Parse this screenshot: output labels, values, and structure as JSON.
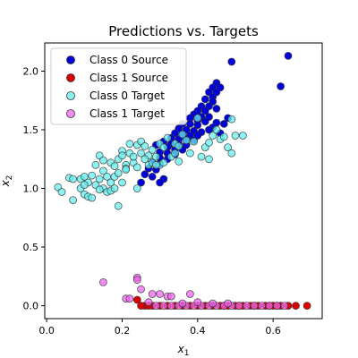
{
  "chart_data": {
    "type": "scatter",
    "title": "Predictions vs. Targets",
    "xlabel": "x",
    "xlabel_sub": "1",
    "ylabel": "x",
    "ylabel_sub": "2",
    "xlim": [
      -0.005,
      0.73
    ],
    "ylim": [
      -0.11,
      2.24
    ],
    "x_ticks": [
      0.0,
      0.2,
      0.4,
      0.6
    ],
    "x_tick_labels": [
      "0.0",
      "0.2",
      "0.4",
      "0.6"
    ],
    "y_ticks": [
      0.0,
      0.5,
      1.0,
      1.5,
      2.0
    ],
    "y_tick_labels": [
      "0.0",
      "0.5",
      "1.0",
      "1.5",
      "2.0"
    ],
    "grid": false,
    "legend_position": "top-left",
    "series": [
      {
        "name": "Class 0 Source",
        "color": "#0000dd",
        "points": [
          [
            0.64,
            2.13
          ],
          [
            0.49,
            2.08
          ],
          [
            0.62,
            1.87
          ],
          [
            0.45,
            1.9
          ],
          [
            0.44,
            1.86
          ],
          [
            0.46,
            1.86
          ],
          [
            0.43,
            1.82
          ],
          [
            0.45,
            1.82
          ],
          [
            0.44,
            1.78
          ],
          [
            0.42,
            1.76
          ],
          [
            0.44,
            1.74
          ],
          [
            0.41,
            1.7
          ],
          [
            0.43,
            1.7
          ],
          [
            0.45,
            1.68
          ],
          [
            0.4,
            1.66
          ],
          [
            0.42,
            1.66
          ],
          [
            0.39,
            1.63
          ],
          [
            0.41,
            1.61
          ],
          [
            0.43,
            1.61
          ],
          [
            0.38,
            1.6
          ],
          [
            0.4,
            1.58
          ],
          [
            0.42,
            1.57
          ],
          [
            0.45,
            1.56
          ],
          [
            0.36,
            1.55
          ],
          [
            0.38,
            1.55
          ],
          [
            0.4,
            1.54
          ],
          [
            0.44,
            1.52
          ],
          [
            0.35,
            1.51
          ],
          [
            0.37,
            1.5
          ],
          [
            0.39,
            1.49
          ],
          [
            0.41,
            1.48
          ],
          [
            0.43,
            1.5
          ],
          [
            0.34,
            1.47
          ],
          [
            0.36,
            1.46
          ],
          [
            0.38,
            1.45
          ],
          [
            0.4,
            1.45
          ],
          [
            0.33,
            1.43
          ],
          [
            0.35,
            1.42
          ],
          [
            0.37,
            1.42
          ],
          [
            0.39,
            1.41
          ],
          [
            0.31,
            1.4
          ],
          [
            0.33,
            1.38
          ],
          [
            0.35,
            1.38
          ],
          [
            0.37,
            1.37
          ],
          [
            0.32,
            1.35
          ],
          [
            0.34,
            1.33
          ],
          [
            0.36,
            1.33
          ],
          [
            0.3,
            1.31
          ],
          [
            0.32,
            1.3
          ],
          [
            0.34,
            1.29
          ],
          [
            0.3,
            1.26
          ],
          [
            0.32,
            1.25
          ],
          [
            0.28,
            1.22
          ],
          [
            0.3,
            1.21
          ],
          [
            0.27,
            1.17
          ],
          [
            0.29,
            1.16
          ],
          [
            0.26,
            1.12
          ],
          [
            0.28,
            1.1
          ],
          [
            0.31,
            1.08
          ],
          [
            0.25,
            1.05
          ],
          [
            0.3,
            1.05
          ],
          [
            0.47,
            1.55
          ],
          [
            0.46,
            1.47
          ],
          [
            0.48,
            1.6
          ],
          [
            0.29,
            1.37
          ]
        ]
      },
      {
        "name": "Class 1 Source",
        "color": "#dd0000",
        "points": [
          [
            0.69,
            0.0
          ],
          [
            0.66,
            0.0
          ],
          [
            0.64,
            0.0
          ],
          [
            0.62,
            0.0
          ],
          [
            0.6,
            0.0
          ],
          [
            0.58,
            0.0
          ],
          [
            0.56,
            0.0
          ],
          [
            0.54,
            0.0
          ],
          [
            0.52,
            0.0
          ],
          [
            0.5,
            0.0
          ],
          [
            0.48,
            0.0
          ],
          [
            0.46,
            0.0
          ],
          [
            0.44,
            0.0
          ],
          [
            0.42,
            0.0
          ],
          [
            0.4,
            0.0
          ],
          [
            0.38,
            0.0
          ],
          [
            0.36,
            0.0
          ],
          [
            0.34,
            0.0
          ],
          [
            0.32,
            0.0
          ],
          [
            0.3,
            0.0
          ],
          [
            0.28,
            0.0
          ],
          [
            0.26,
            0.0
          ],
          [
            0.25,
            0.0
          ],
          [
            0.24,
            0.05
          ],
          [
            0.27,
            0.0
          ],
          [
            0.47,
            0.0
          ],
          [
            0.51,
            0.0
          ],
          [
            0.55,
            0.0
          ],
          [
            0.59,
            0.0
          ],
          [
            0.61,
            0.0
          ]
        ]
      },
      {
        "name": "Class 0 Target",
        "color": "#66eeee",
        "points": [
          [
            0.03,
            1.01
          ],
          [
            0.04,
            0.97
          ],
          [
            0.06,
            1.09
          ],
          [
            0.07,
            1.08
          ],
          [
            0.07,
            0.9
          ],
          [
            0.09,
            1.0
          ],
          [
            0.09,
            1.08
          ],
          [
            0.1,
            0.95
          ],
          [
            0.1,
            1.1
          ],
          [
            0.11,
            0.93
          ],
          [
            0.11,
            1.05
          ],
          [
            0.12,
            0.92
          ],
          [
            0.12,
            1.11
          ],
          [
            0.13,
            1.03
          ],
          [
            0.13,
            1.2
          ],
          [
            0.14,
            1.28
          ],
          [
            0.14,
            1.08
          ],
          [
            0.15,
            1.15
          ],
          [
            0.15,
            1.24
          ],
          [
            0.15,
            1.0
          ],
          [
            0.16,
            1.1
          ],
          [
            0.16,
            0.97
          ],
          [
            0.17,
            1.22
          ],
          [
            0.17,
            1.05
          ],
          [
            0.17,
            0.98
          ],
          [
            0.18,
            1.19
          ],
          [
            0.18,
            1.1
          ],
          [
            0.18,
            1.0
          ],
          [
            0.19,
            1.25
          ],
          [
            0.19,
            1.13
          ],
          [
            0.19,
            0.85
          ],
          [
            0.2,
            1.32
          ],
          [
            0.2,
            1.05
          ],
          [
            0.2,
            1.28
          ],
          [
            0.21,
            1.2
          ],
          [
            0.21,
            1.17
          ],
          [
            0.22,
            1.38
          ],
          [
            0.22,
            1.3
          ],
          [
            0.23,
            1.22
          ],
          [
            0.23,
            1.27
          ],
          [
            0.24,
            1.37
          ],
          [
            0.24,
            1.18
          ],
          [
            0.25,
            1.4
          ],
          [
            0.25,
            1.3
          ],
          [
            0.26,
            1.36
          ],
          [
            0.27,
            1.2
          ],
          [
            0.27,
            1.28
          ],
          [
            0.28,
            1.33
          ],
          [
            0.28,
            1.22
          ],
          [
            0.29,
            1.27
          ],
          [
            0.3,
            1.2
          ],
          [
            0.3,
            1.38
          ],
          [
            0.31,
            1.35
          ],
          [
            0.31,
            1.22
          ],
          [
            0.32,
            1.43
          ],
          [
            0.33,
            1.27
          ],
          [
            0.34,
            1.38
          ],
          [
            0.34,
            1.3
          ],
          [
            0.35,
            1.36
          ],
          [
            0.35,
            1.23
          ],
          [
            0.36,
            1.46
          ],
          [
            0.37,
            1.41
          ],
          [
            0.38,
            1.3
          ],
          [
            0.39,
            1.4
          ],
          [
            0.4,
            1.6
          ],
          [
            0.41,
            1.27
          ],
          [
            0.42,
            1.35
          ],
          [
            0.43,
            1.39
          ],
          [
            0.43,
            1.25
          ],
          [
            0.44,
            1.45
          ],
          [
            0.45,
            1.5
          ],
          [
            0.46,
            1.42
          ],
          [
            0.47,
            1.44
          ],
          [
            0.48,
            1.35
          ],
          [
            0.49,
            1.3
          ],
          [
            0.49,
            1.59
          ],
          [
            0.5,
            1.45
          ],
          [
            0.52,
            1.45
          ],
          [
            0.21,
            1.16
          ],
          [
            0.26,
            1.25
          ],
          [
            0.29,
            1.2
          ],
          [
            0.24,
            1.0
          ],
          [
            0.1,
            1.03
          ],
          [
            0.14,
            0.99
          ]
        ]
      },
      {
        "name": "Class 1 Target",
        "color": "#ee66ee",
        "points": [
          [
            0.15,
            0.2
          ],
          [
            0.24,
            0.24
          ],
          [
            0.24,
            0.22
          ],
          [
            0.25,
            0.14
          ],
          [
            0.21,
            0.06
          ],
          [
            0.22,
            0.06
          ],
          [
            0.28,
            0.1
          ],
          [
            0.3,
            0.1
          ],
          [
            0.32,
            0.08
          ],
          [
            0.33,
            0.08
          ],
          [
            0.38,
            0.1
          ],
          [
            0.27,
            0.03
          ],
          [
            0.29,
            0.0
          ],
          [
            0.31,
            0.0
          ],
          [
            0.33,
            0.0
          ],
          [
            0.35,
            0.0
          ],
          [
            0.37,
            0.0
          ],
          [
            0.39,
            0.0
          ],
          [
            0.41,
            0.0
          ],
          [
            0.43,
            0.0
          ],
          [
            0.45,
            0.0
          ],
          [
            0.47,
            0.0
          ],
          [
            0.49,
            0.0
          ],
          [
            0.51,
            0.0
          ],
          [
            0.53,
            0.0
          ],
          [
            0.55,
            0.0
          ],
          [
            0.57,
            0.0
          ],
          [
            0.59,
            0.0
          ],
          [
            0.61,
            0.0
          ],
          [
            0.63,
            0.0
          ],
          [
            0.36,
            0.02
          ],
          [
            0.4,
            0.03
          ],
          [
            0.44,
            0.02
          ],
          [
            0.48,
            0.02
          ]
        ]
      }
    ]
  }
}
